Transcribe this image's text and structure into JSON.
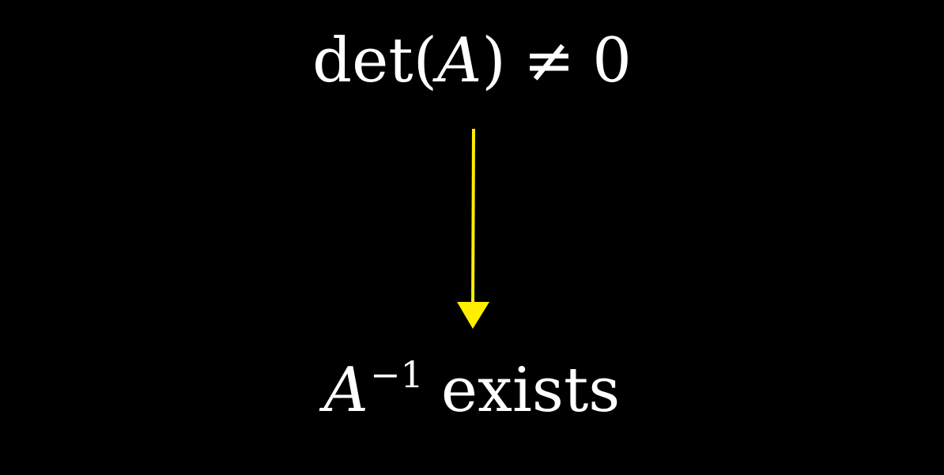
{
  "colors": {
    "background": "#000000",
    "text": "#ffffff",
    "arrow": "#ffee00"
  },
  "top": {
    "func": "det",
    "open_paren": "(",
    "var": "A",
    "close_paren": ")",
    "relation": "≠",
    "value": "0"
  },
  "bottom": {
    "var": "A",
    "superscript": "−1",
    "word": "exists"
  },
  "arrow": {
    "icon": "down-arrow-icon"
  }
}
